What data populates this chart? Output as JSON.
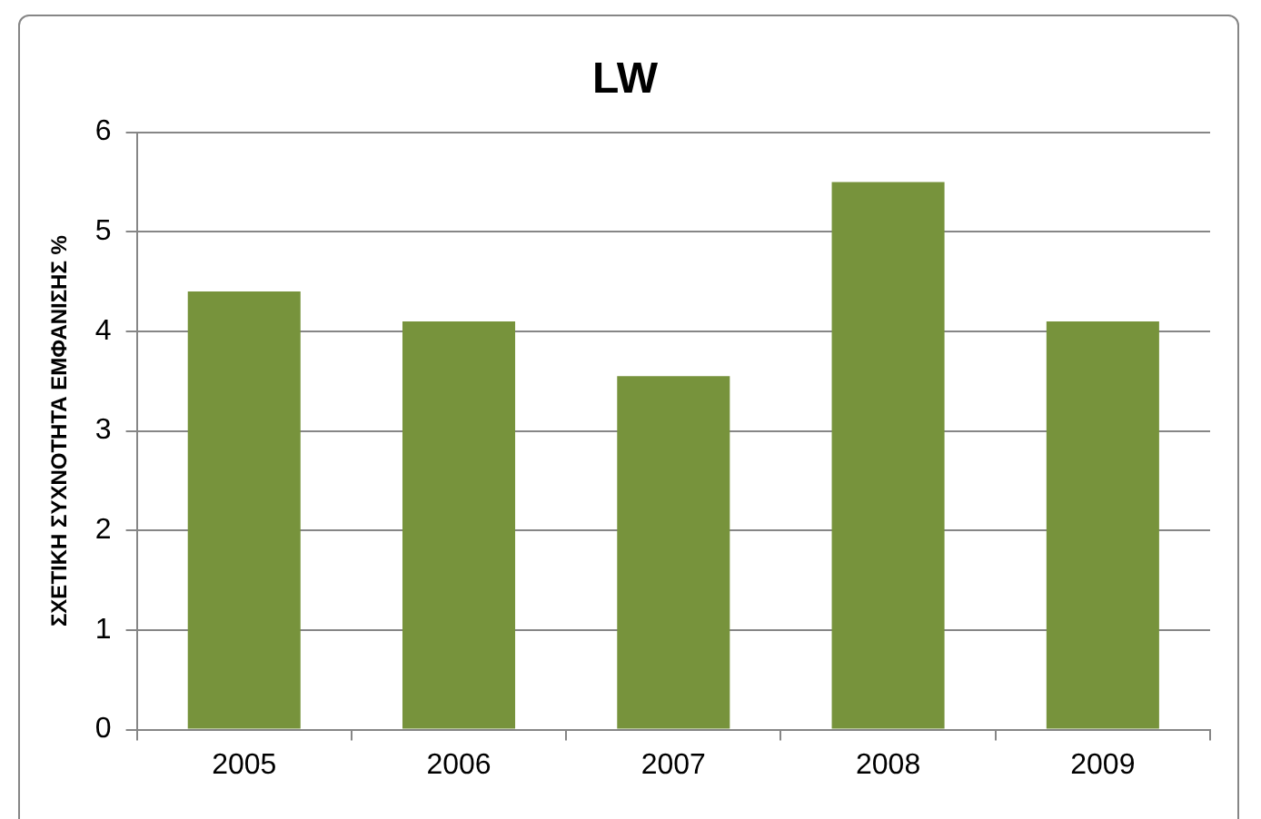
{
  "chart_data": {
    "type": "bar",
    "title": "LW",
    "ylabel": "ΣΧΕΤΙΚΗ ΣΥΧΝΟΤΗΤΑ ΕΜΦΑΝΙΣΗΣ %",
    "categories": [
      "2005",
      "2006",
      "2007",
      "2008",
      "2009"
    ],
    "values": [
      4.4,
      4.1,
      3.55,
      5.5,
      4.1
    ],
    "color": "#77933c",
    "ylim": [
      0,
      6
    ],
    "yticks": [
      0,
      1,
      2,
      3,
      4,
      5,
      6
    ],
    "grid": "y",
    "legend": false
  }
}
